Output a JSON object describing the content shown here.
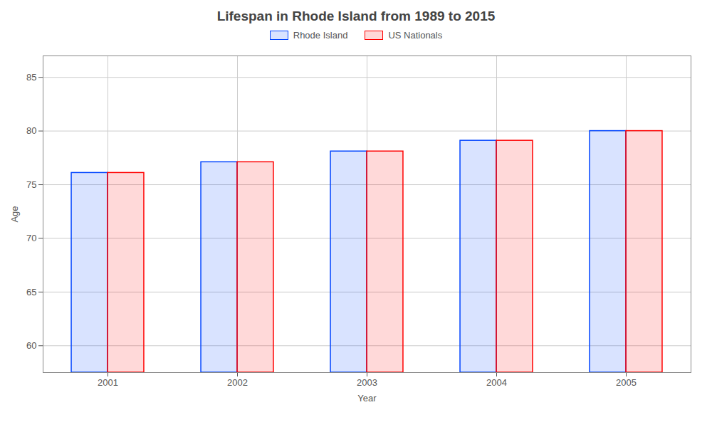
{
  "chart_data": {
    "type": "bar",
    "title": "Lifespan in Rhode Island from 1989 to 2015",
    "xlabel": "Year",
    "ylabel": "Age",
    "categories": [
      "2001",
      "2002",
      "2003",
      "2004",
      "2005"
    ],
    "series": [
      {
        "name": "Rhode Island",
        "color": "#0044ff",
        "values": [
          76.1,
          77.1,
          78.1,
          79.1,
          80.0
        ]
      },
      {
        "name": "US Nationals",
        "color": "#ff0000",
        "values": [
          76.1,
          77.1,
          78.1,
          79.1,
          80.0
        ]
      }
    ],
    "ylim": [
      57.5,
      87
    ],
    "yticks": [
      60,
      65,
      70,
      75,
      80,
      85
    ],
    "grid": true,
    "legend": "top"
  }
}
